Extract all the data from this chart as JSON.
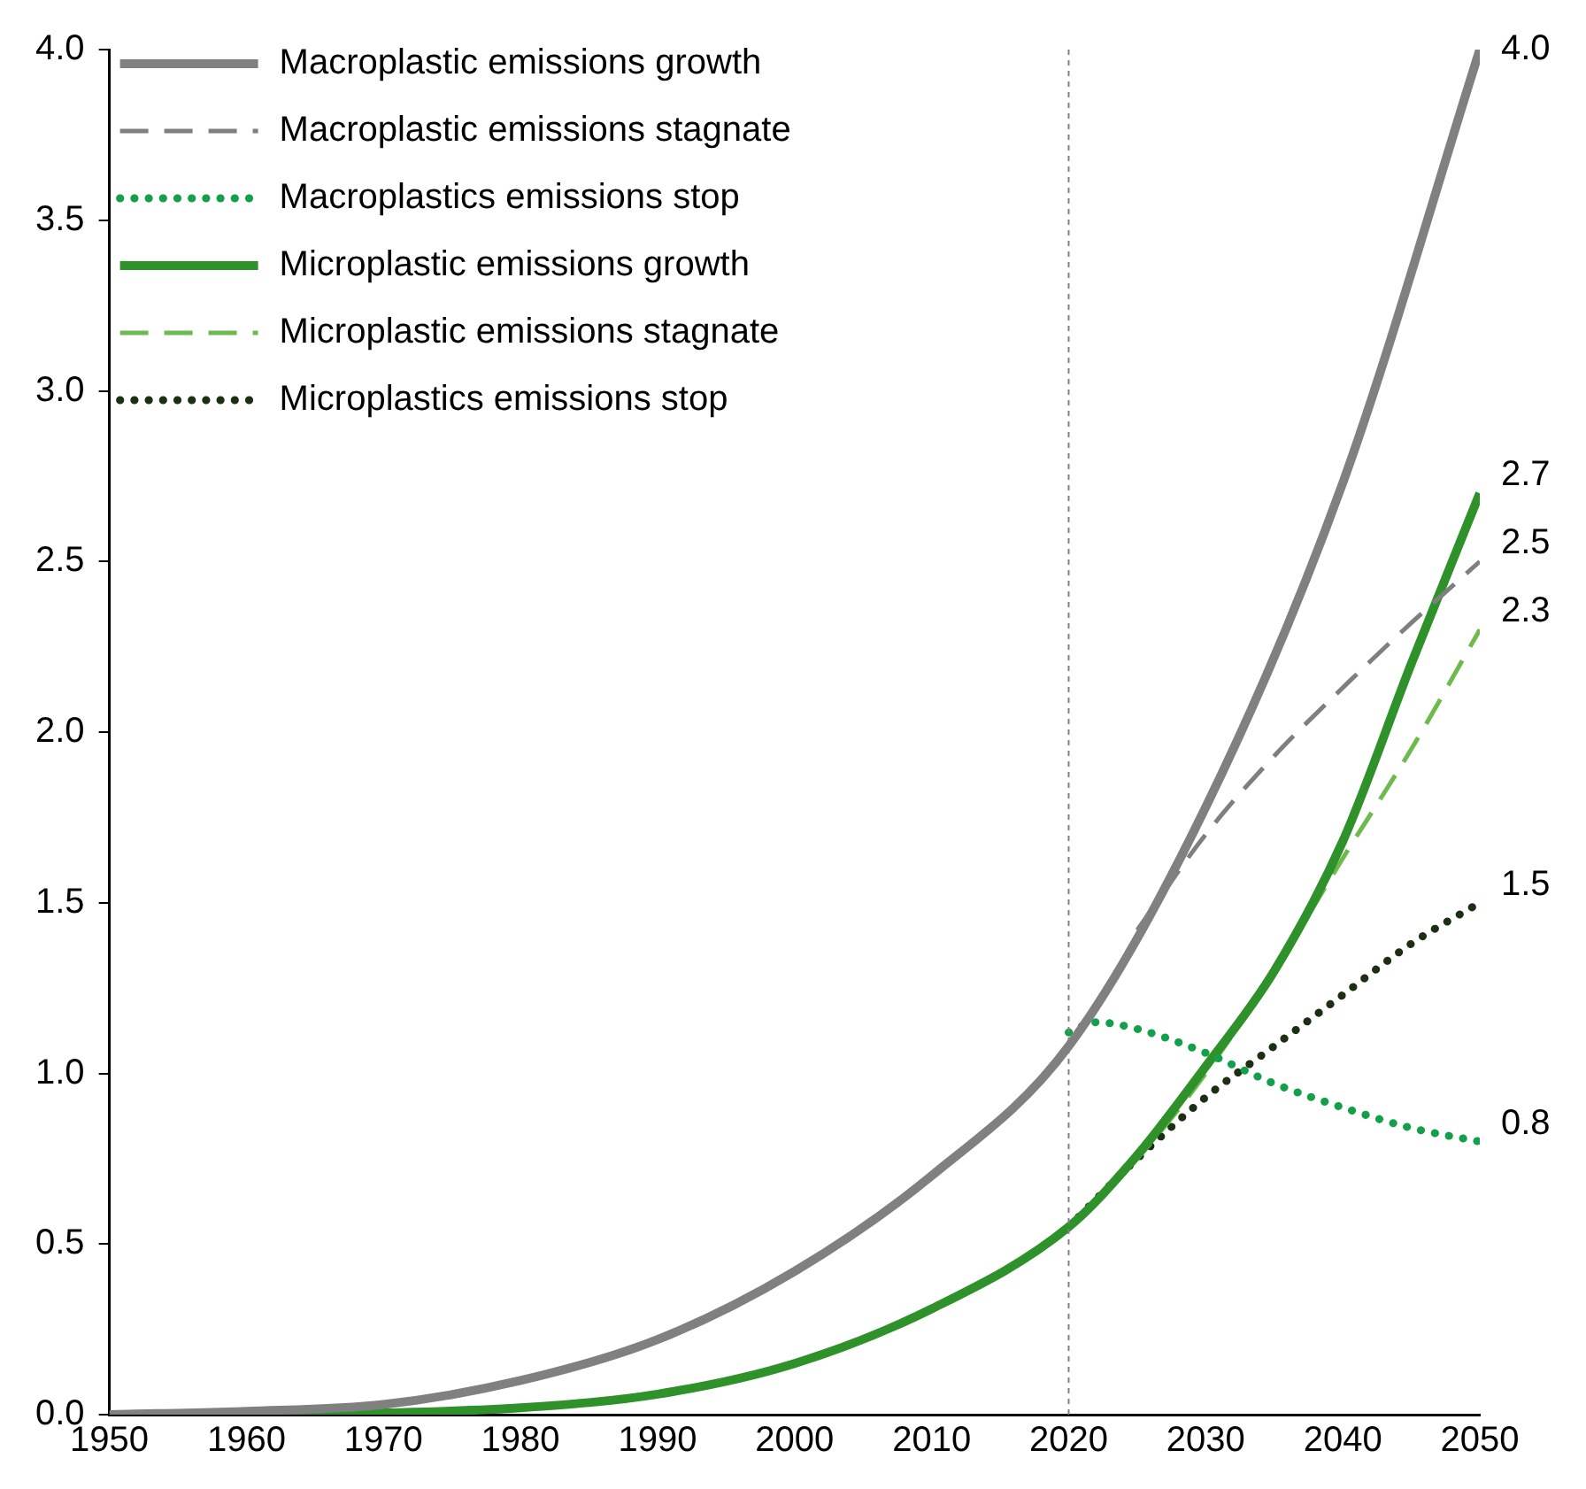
{
  "chart_data": {
    "type": "line",
    "xlim": [
      1950,
      2050
    ],
    "xticks": [
      1950,
      1960,
      1970,
      1980,
      1990,
      2000,
      2010,
      2020,
      2030,
      2040,
      2050
    ],
    "ylim": [
      0,
      4
    ],
    "yticks": [
      {
        "value": 0,
        "label": "0.0"
      },
      0.5,
      {
        "value": 1,
        "label": "1.0"
      },
      1.5,
      {
        "value": 2,
        "label": "2.0"
      },
      2.5,
      {
        "value": 3,
        "label": "3.0"
      },
      3.5,
      {
        "value": 4,
        "label": "4.0"
      }
    ],
    "grid": false,
    "legend": "top left",
    "marker": "none",
    "ref_lines": [
      {
        "axis": "x",
        "value": 2020,
        "color": "#808080",
        "line_style": "dashed"
      }
    ],
    "series": [
      {
        "name": "Macroplastic emissions growth",
        "color": "#808080",
        "line_style": "solid",
        "x": [
          1950,
          1960,
          1970,
          1980,
          1990,
          2000,
          2010,
          2020,
          2030,
          2040,
          2050
        ],
        "values": [
          0,
          0.01,
          0.03,
          0.1,
          0.22,
          0.42,
          0.7,
          1.08,
          1.78,
          2.73,
          4.0
        ],
        "value_labels": [
          null,
          null,
          null,
          null,
          null,
          null,
          null,
          null,
          null,
          null,
          "4.0"
        ]
      },
      {
        "name": "Macroplastic emissions stagnate",
        "color": "#7f7f7f",
        "line_style": "dashed",
        "x": [
          2025,
          2030,
          2035,
          2040,
          2045,
          2050
        ],
        "values": [
          1.42,
          1.7,
          1.93,
          2.13,
          2.32,
          2.5
        ],
        "value_labels": [
          null,
          null,
          null,
          null,
          null,
          "2.5"
        ]
      },
      {
        "name": "Macroplastics emissions stop",
        "color": "#12a04a",
        "line_style": "dotted",
        "x": [
          2020,
          2022,
          2025,
          2030,
          2035,
          2040,
          2045,
          2050
        ],
        "values": [
          1.12,
          1.15,
          1.13,
          1.06,
          0.97,
          0.9,
          0.84,
          0.8
        ],
        "value_labels": [
          null,
          null,
          null,
          null,
          null,
          null,
          null,
          "0.8"
        ]
      },
      {
        "name": "Microplastic emissions growth",
        "color": "#2e912a",
        "line_style": "solid",
        "x": [
          1950,
          1960,
          1970,
          1980,
          1990,
          2000,
          2010,
          2020,
          2025,
          2030,
          2035,
          2040,
          2045,
          2050
        ],
        "values": [
          0,
          0,
          0.005,
          0.02,
          0.06,
          0.15,
          0.31,
          0.55,
          0.76,
          1.02,
          1.3,
          1.68,
          2.2,
          2.7
        ],
        "value_labels": [
          null,
          null,
          null,
          null,
          null,
          null,
          null,
          null,
          null,
          null,
          null,
          null,
          null,
          "2.7"
        ]
      },
      {
        "name": "Microplastic emissions stagnate",
        "color": "#6dba4f",
        "line_style": "dashed",
        "x": [
          2020,
          2025,
          2030,
          2035,
          2040,
          2045,
          2050
        ],
        "values": [
          0.55,
          0.75,
          1.0,
          1.3,
          1.63,
          1.95,
          2.3
        ],
        "value_labels": [
          null,
          null,
          null,
          null,
          null,
          null,
          "2.3"
        ]
      },
      {
        "name": "Microplastics emissions stop",
        "color": "#1c2e14",
        "line_style": "dotted",
        "x": [
          2020,
          2025,
          2030,
          2035,
          2040,
          2045,
          2050
        ],
        "values": [
          0.55,
          0.75,
          0.93,
          1.08,
          1.23,
          1.38,
          1.5
        ],
        "value_labels": [
          null,
          null,
          null,
          null,
          null,
          null,
          "1.5"
        ]
      }
    ]
  }
}
